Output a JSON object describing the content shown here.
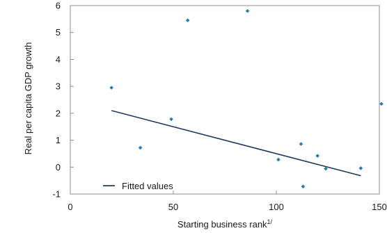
{
  "chart_data": {
    "type": "scatter",
    "title": "",
    "xlabel": "Starting business rank",
    "xlabel_superscript": "1/",
    "ylabel": "Real per capita GDP growth",
    "xlim": [
      0,
      150
    ],
    "ylim": [
      -1,
      6
    ],
    "x_ticks": [
      "0",
      "50",
      "100",
      "150"
    ],
    "y_ticks": [
      "-1",
      "0",
      "1",
      "2",
      "3",
      "4",
      "5",
      "6"
    ],
    "grid": false,
    "legend": {
      "position": "bottom-left",
      "entries": [
        "Fitted values"
      ]
    },
    "series": [
      {
        "kind": "points",
        "color": "#2a7ab0",
        "x": [
          20,
          34,
          49,
          57,
          86,
          101,
          112,
          113,
          120,
          124,
          141,
          151
        ],
        "y": [
          2.95,
          0.72,
          1.78,
          5.45,
          5.8,
          0.28,
          0.86,
          -0.72,
          0.42,
          -0.06,
          -0.04,
          2.35
        ]
      },
      {
        "name": "Fitted values",
        "kind": "line",
        "color": "#1f3a5f",
        "x": [
          20,
          141
        ],
        "y": [
          2.1,
          -0.32
        ]
      }
    ]
  }
}
